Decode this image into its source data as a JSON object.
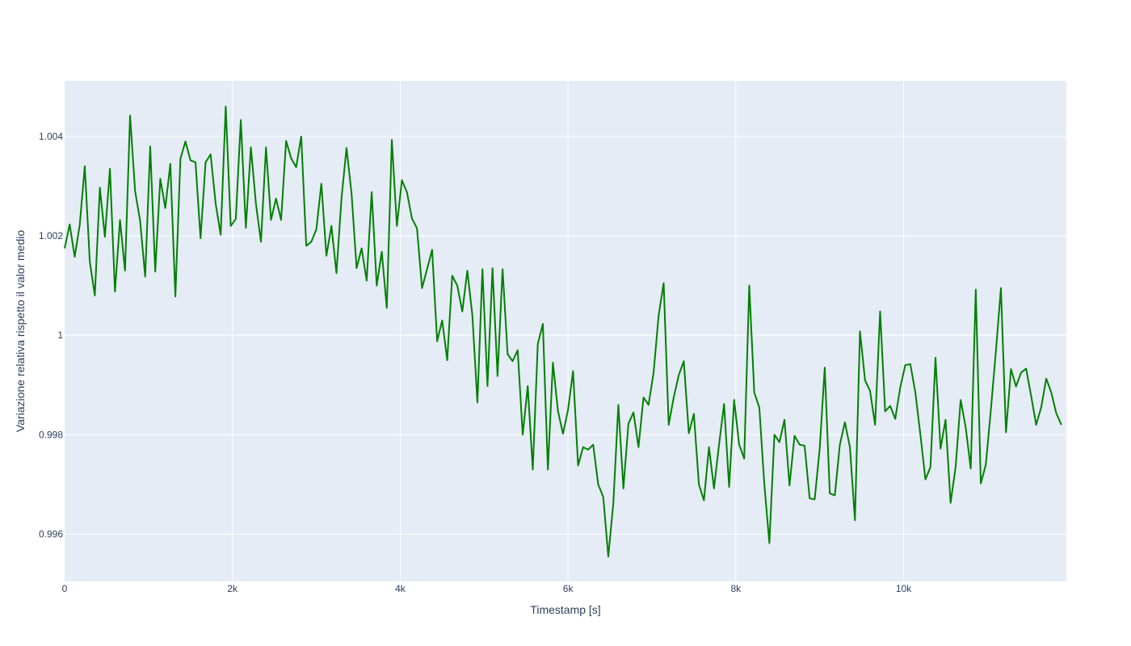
{
  "chart_data": {
    "type": "line",
    "xlabel": "Timestamp [s]",
    "ylabel": "Variazione relativa rispetto il valor medio",
    "xlim": [
      0,
      11940
    ],
    "ylim": [
      0.99505,
      1.00512
    ],
    "x_ticks": [
      0,
      2000,
      4000,
      6000,
      8000,
      10000
    ],
    "x_tick_labels": [
      "0",
      "2k",
      "4k",
      "6k",
      "8k",
      "10k"
    ],
    "y_ticks": [
      0.996,
      0.998,
      1.0,
      1.002,
      1.004
    ],
    "y_tick_labels": [
      "0.996",
      "0.998",
      "1",
      "1.002",
      "1.004"
    ],
    "grid": true,
    "colors": {
      "line": "#008000",
      "plot_bg": "#e5ecf6",
      "grid": "#ffffff",
      "text": "#2a3f5f"
    },
    "series": [
      {
        "x_start": 0,
        "x_step": 60,
        "values": [
          1.00175,
          1.00223,
          1.00158,
          1.00222,
          1.0034,
          1.00148,
          1.0008,
          1.00297,
          1.00198,
          1.00335,
          1.00088,
          1.00232,
          1.0013,
          1.00442,
          1.0029,
          1.0023,
          1.00118,
          1.0038,
          1.00128,
          1.00315,
          1.00256,
          1.00345,
          1.00078,
          1.00355,
          1.0039,
          1.00352,
          1.00348,
          1.00195,
          1.00348,
          1.00364,
          1.00265,
          1.00202,
          1.0046,
          1.0022,
          1.00234,
          1.00433,
          1.00216,
          1.00378,
          1.00265,
          1.00188,
          1.00378,
          1.00232,
          1.00275,
          1.00232,
          1.00391,
          1.00356,
          1.00338,
          1.004,
          1.0018,
          1.00188,
          1.00213,
          1.00305,
          1.0016,
          1.0022,
          1.00125,
          1.00275,
          1.00377,
          1.00285,
          1.00135,
          1.00175,
          1.0011,
          1.00288,
          1.001,
          1.00168,
          1.00055,
          1.00393,
          1.0022,
          1.00312,
          1.00288,
          1.00235,
          1.00215,
          1.00095,
          1.00133,
          1.00172,
          0.99988,
          1.0003,
          0.9995,
          1.0012,
          1.001,
          1.00048,
          1.0013,
          1.0004,
          0.99865,
          1.00133,
          0.99898,
          1.00135,
          0.99918,
          1.00133,
          0.99962,
          0.99948,
          0.9997,
          0.998,
          0.99898,
          0.9973,
          0.99983,
          1.00023,
          0.9973,
          0.99945,
          0.99848,
          0.99802,
          0.9985,
          0.99928,
          0.99738,
          0.99775,
          0.9977,
          0.9978,
          0.997,
          0.99675,
          0.99555,
          0.99662,
          0.9986,
          0.99692,
          0.99822,
          0.99845,
          0.99775,
          0.99875,
          0.9986,
          0.99925,
          1.0004,
          1.00105,
          0.9982,
          0.99875,
          0.9992,
          0.99948,
          0.99803,
          0.99842,
          0.997,
          0.99668,
          0.99775,
          0.99692,
          0.9978,
          0.99862,
          0.99695,
          0.9987,
          0.9978,
          0.99752,
          1.001,
          0.99885,
          0.99855,
          0.997,
          0.99582,
          0.998,
          0.99785,
          0.9983,
          0.99698,
          0.99798,
          0.9978,
          0.99778,
          0.99672,
          0.9967,
          0.99772,
          0.99935,
          0.99682,
          0.99678,
          0.9978,
          0.99825,
          0.99775,
          0.99628,
          1.00008,
          0.9991,
          0.99888,
          0.9982,
          1.00048,
          0.99847,
          0.99858,
          0.99832,
          0.99895,
          0.9994,
          0.99942,
          0.99885,
          0.998,
          0.9971,
          0.99735,
          0.99955,
          0.99772,
          0.9983,
          0.99663,
          0.99735,
          0.9987,
          0.99815,
          0.99732,
          1.00092,
          0.99702,
          0.9974,
          0.9985,
          0.99968,
          1.00095,
          0.99805,
          0.99932,
          0.99897,
          0.99925,
          0.99933,
          0.99878,
          0.9982,
          0.99855,
          0.99913,
          0.99885,
          0.99843,
          0.9982
        ]
      }
    ]
  }
}
